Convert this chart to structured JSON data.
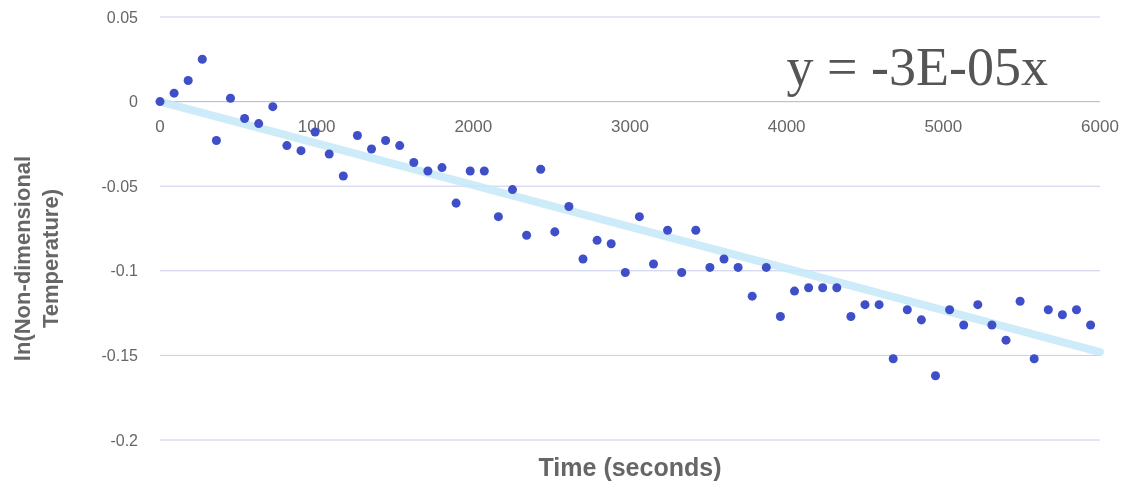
{
  "chart_data": {
    "type": "scatter",
    "xlabel": "Time (seconds)",
    "ylabel": "ln(Non-dimensional Temperature)",
    "annotations": [
      "y = -3E-05x"
    ],
    "xlim": [
      0,
      6000
    ],
    "xticks": [
      0,
      1000,
      2000,
      3000,
      4000,
      5000,
      6000
    ],
    "ylim": [
      -0.2,
      0.05
    ],
    "yticks": [
      {
        "value": -0.2,
        "label": "-0.2"
      },
      {
        "value": -0.15,
        "label": "-0.15"
      },
      {
        "value": -0.1,
        "label": "-0.1"
      },
      {
        "value": -0.05,
        "label": "-0.05"
      },
      {
        "value": 0,
        "label": "0"
      },
      {
        "value": 0.05,
        "label": "0.05"
      }
    ],
    "grid": "y",
    "marker": "circle",
    "series": [
      {
        "color": "#3f4fc9",
        "x": [
          0,
          90,
          180,
          270,
          360,
          450,
          540,
          630,
          720,
          810,
          900,
          990,
          1080,
          1170,
          1260,
          1350,
          1440,
          1530,
          1620,
          1710,
          1800,
          1890,
          1980,
          2070,
          2160,
          2250,
          2340,
          2430,
          2520,
          2610,
          2700,
          2790,
          2880,
          2970,
          3060,
          3150,
          3240,
          3330,
          3420,
          3510,
          3600,
          3690,
          3780,
          3870,
          3960,
          4050,
          4140,
          4230,
          4320,
          4410,
          4500,
          4590,
          4680,
          4770,
          4860,
          4950,
          5040,
          5130,
          5220,
          5310,
          5400,
          5490,
          5580,
          5670,
          5760,
          5850,
          5940
        ],
        "values": [
          0,
          0.005,
          0.0125,
          0.025,
          -0.023,
          0.002,
          -0.01,
          -0.013,
          -0.003,
          -0.026,
          -0.029,
          -0.018,
          -0.031,
          -0.044,
          -0.02,
          -0.028,
          -0.023,
          -0.026,
          -0.036,
          -0.041,
          -0.039,
          -0.06,
          -0.041,
          -0.041,
          -0.068,
          -0.052,
          -0.079,
          -0.04,
          -0.077,
          -0.062,
          -0.093,
          -0.082,
          -0.084,
          -0.101,
          -0.068,
          -0.096,
          -0.076,
          -0.101,
          -0.076,
          -0.098,
          -0.093,
          -0.098,
          -0.115,
          -0.098,
          -0.127,
          -0.112,
          -0.11,
          -0.11,
          -0.11,
          -0.127,
          -0.12,
          -0.12,
          -0.152,
          -0.123,
          -0.129,
          -0.162,
          -0.123,
          -0.132,
          -0.12,
          -0.132,
          -0.141,
          -0.118,
          -0.152,
          -0.123,
          -0.126,
          -0.123,
          -0.132
        ]
      },
      {
        "type": "line",
        "color": "#c4e8f8",
        "x": [
          0,
          6000
        ],
        "values": [
          0,
          -0.148
        ],
        "marker": "none"
      }
    ]
  }
}
